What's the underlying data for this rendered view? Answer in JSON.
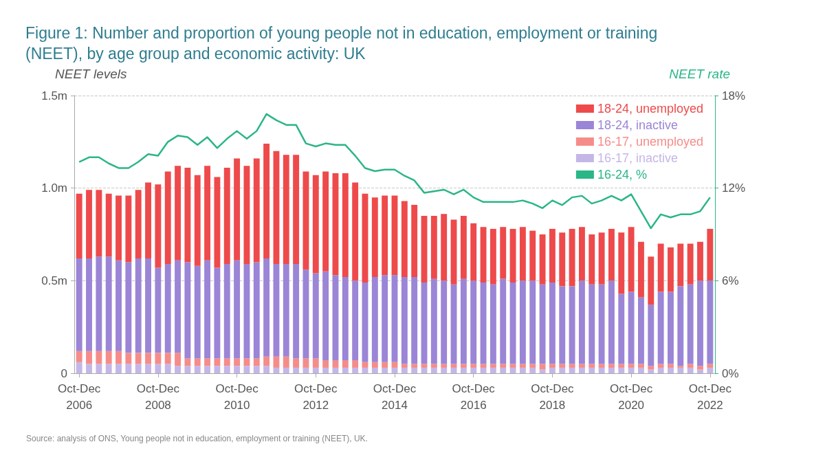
{
  "chart_data": {
    "type": "bar",
    "stacked": true,
    "title": "Figure 1: Number and proportion of young people not in education, employment or training (NEET), by age group and economic activity: UK",
    "ylabel": "NEET levels",
    "y2label": "NEET rate",
    "categories": [
      "Oct-Dec 2006",
      null,
      null,
      null,
      null,
      null,
      null,
      null,
      "Oct-Dec 2008",
      null,
      null,
      null,
      null,
      null,
      null,
      null,
      "Oct-Dec 2010",
      null,
      null,
      null,
      null,
      null,
      null,
      null,
      "Oct-Dec 2012",
      null,
      null,
      null,
      null,
      null,
      null,
      null,
      "Oct-Dec 2014",
      null,
      null,
      null,
      null,
      null,
      null,
      null,
      "Oct-Dec 2016",
      null,
      null,
      null,
      null,
      null,
      null,
      null,
      "Oct-Dec 2018",
      null,
      null,
      null,
      null,
      null,
      null,
      null,
      "Oct-Dec 2020",
      null,
      null,
      null,
      null,
      null,
      null,
      null,
      "Oct-Dec 2022"
    ],
    "series": [
      {
        "name": "16-17, inactive",
        "color": "#c5b6e8",
        "values": [
          0.06,
          0.05,
          0.05,
          0.05,
          0.05,
          0.05,
          0.05,
          0.05,
          0.05,
          0.05,
          0.04,
          0.04,
          0.04,
          0.04,
          0.04,
          0.04,
          0.04,
          0.04,
          0.04,
          0.04,
          0.03,
          0.03,
          0.03,
          0.03,
          0.03,
          0.03,
          0.03,
          0.03,
          0.03,
          0.03,
          0.03,
          0.03,
          0.03,
          0.03,
          0.03,
          0.03,
          0.03,
          0.03,
          0.03,
          0.03,
          0.03,
          0.03,
          0.03,
          0.03,
          0.03,
          0.03,
          0.03,
          0.02,
          0.03,
          0.03,
          0.03,
          0.03,
          0.03,
          0.03,
          0.03,
          0.03,
          0.03,
          0.03,
          0.02,
          0.03,
          0.03,
          0.03,
          0.03,
          0.02,
          0.03
        ]
      },
      {
        "name": "16-17, unemployed",
        "color": "#f58c89",
        "values": [
          0.06,
          0.07,
          0.07,
          0.07,
          0.07,
          0.06,
          0.06,
          0.06,
          0.06,
          0.06,
          0.07,
          0.04,
          0.04,
          0.04,
          0.04,
          0.04,
          0.04,
          0.04,
          0.04,
          0.05,
          0.06,
          0.06,
          0.05,
          0.05,
          0.05,
          0.04,
          0.04,
          0.04,
          0.04,
          0.03,
          0.03,
          0.03,
          0.03,
          0.02,
          0.02,
          0.02,
          0.02,
          0.02,
          0.02,
          0.02,
          0.02,
          0.02,
          0.02,
          0.02,
          0.02,
          0.02,
          0.02,
          0.03,
          0.02,
          0.02,
          0.02,
          0.02,
          0.02,
          0.02,
          0.02,
          0.02,
          0.02,
          0.02,
          0.02,
          0.02,
          0.02,
          0.01,
          0.02,
          0.02,
          0.02
        ]
      },
      {
        "name": "18-24, inactive",
        "color": "#9b85d6",
        "values": [
          0.5,
          0.5,
          0.51,
          0.51,
          0.49,
          0.49,
          0.51,
          0.51,
          0.46,
          0.48,
          0.5,
          0.52,
          0.5,
          0.53,
          0.49,
          0.51,
          0.53,
          0.51,
          0.52,
          0.53,
          0.5,
          0.5,
          0.51,
          0.48,
          0.46,
          0.48,
          0.46,
          0.45,
          0.43,
          0.43,
          0.46,
          0.47,
          0.47,
          0.47,
          0.47,
          0.44,
          0.46,
          0.45,
          0.43,
          0.46,
          0.45,
          0.44,
          0.43,
          0.46,
          0.44,
          0.45,
          0.45,
          0.43,
          0.44,
          0.42,
          0.42,
          0.45,
          0.43,
          0.43,
          0.45,
          0.38,
          0.39,
          0.36,
          0.33,
          0.39,
          0.39,
          0.43,
          0.43,
          0.46,
          0.45
        ]
      },
      {
        "name": "18-24, unemployed",
        "color": "#ee4a4b",
        "values": [
          0.35,
          0.37,
          0.36,
          0.34,
          0.35,
          0.36,
          0.37,
          0.41,
          0.45,
          0.5,
          0.51,
          0.51,
          0.49,
          0.51,
          0.49,
          0.52,
          0.55,
          0.53,
          0.56,
          0.62,
          0.61,
          0.59,
          0.59,
          0.53,
          0.53,
          0.54,
          0.55,
          0.56,
          0.53,
          0.48,
          0.43,
          0.43,
          0.43,
          0.41,
          0.39,
          0.36,
          0.34,
          0.36,
          0.35,
          0.34,
          0.31,
          0.3,
          0.3,
          0.28,
          0.29,
          0.29,
          0.27,
          0.27,
          0.29,
          0.29,
          0.31,
          0.29,
          0.27,
          0.28,
          0.28,
          0.33,
          0.35,
          0.3,
          0.26,
          0.26,
          0.24,
          0.23,
          0.22,
          0.21,
          0.28
        ]
      },
      {
        "name": "16-24, %",
        "type": "line",
        "axis": "y2",
        "color": "#2bb686",
        "values": [
          13.7,
          14.0,
          14.0,
          13.6,
          13.3,
          13.3,
          13.7,
          14.2,
          14.1,
          15.0,
          15.4,
          15.3,
          14.8,
          15.3,
          14.6,
          15.2,
          15.7,
          15.2,
          15.7,
          16.8,
          16.4,
          16.1,
          16.1,
          14.9,
          14.7,
          14.9,
          14.8,
          14.8,
          14.1,
          13.3,
          13.1,
          13.2,
          13.2,
          12.8,
          12.5,
          11.7,
          11.8,
          11.9,
          11.6,
          11.9,
          11.4,
          11.1,
          11.1,
          11.1,
          11.1,
          11.2,
          11.0,
          10.7,
          11.2,
          10.9,
          11.4,
          11.5,
          11.0,
          11.2,
          11.5,
          11.2,
          11.6,
          10.5,
          9.4,
          10.3,
          10.1,
          10.3,
          10.3,
          10.5,
          11.4
        ]
      }
    ],
    "ylim": [
      0,
      1.5
    ],
    "yticks": [
      {
        "value": 0,
        "label": "0"
      },
      {
        "value": 0.5,
        "label": "0.5m"
      },
      {
        "value": 1,
        "label": "1.0m"
      },
      {
        "value": 1.5,
        "label": "1.5m"
      }
    ],
    "y2lim": [
      0,
      18
    ],
    "y2ticks": [
      {
        "value": 0,
        "label": "0%"
      },
      {
        "value": 6,
        "label": "6%"
      },
      {
        "value": 12,
        "label": "12%"
      },
      {
        "value": 18,
        "label": "18%"
      }
    ],
    "grid": "y",
    "legend": "top right",
    "annotations": [
      "Source: analysis of ONS, Young people not in education, employment or training (NEET), UK."
    ]
  }
}
